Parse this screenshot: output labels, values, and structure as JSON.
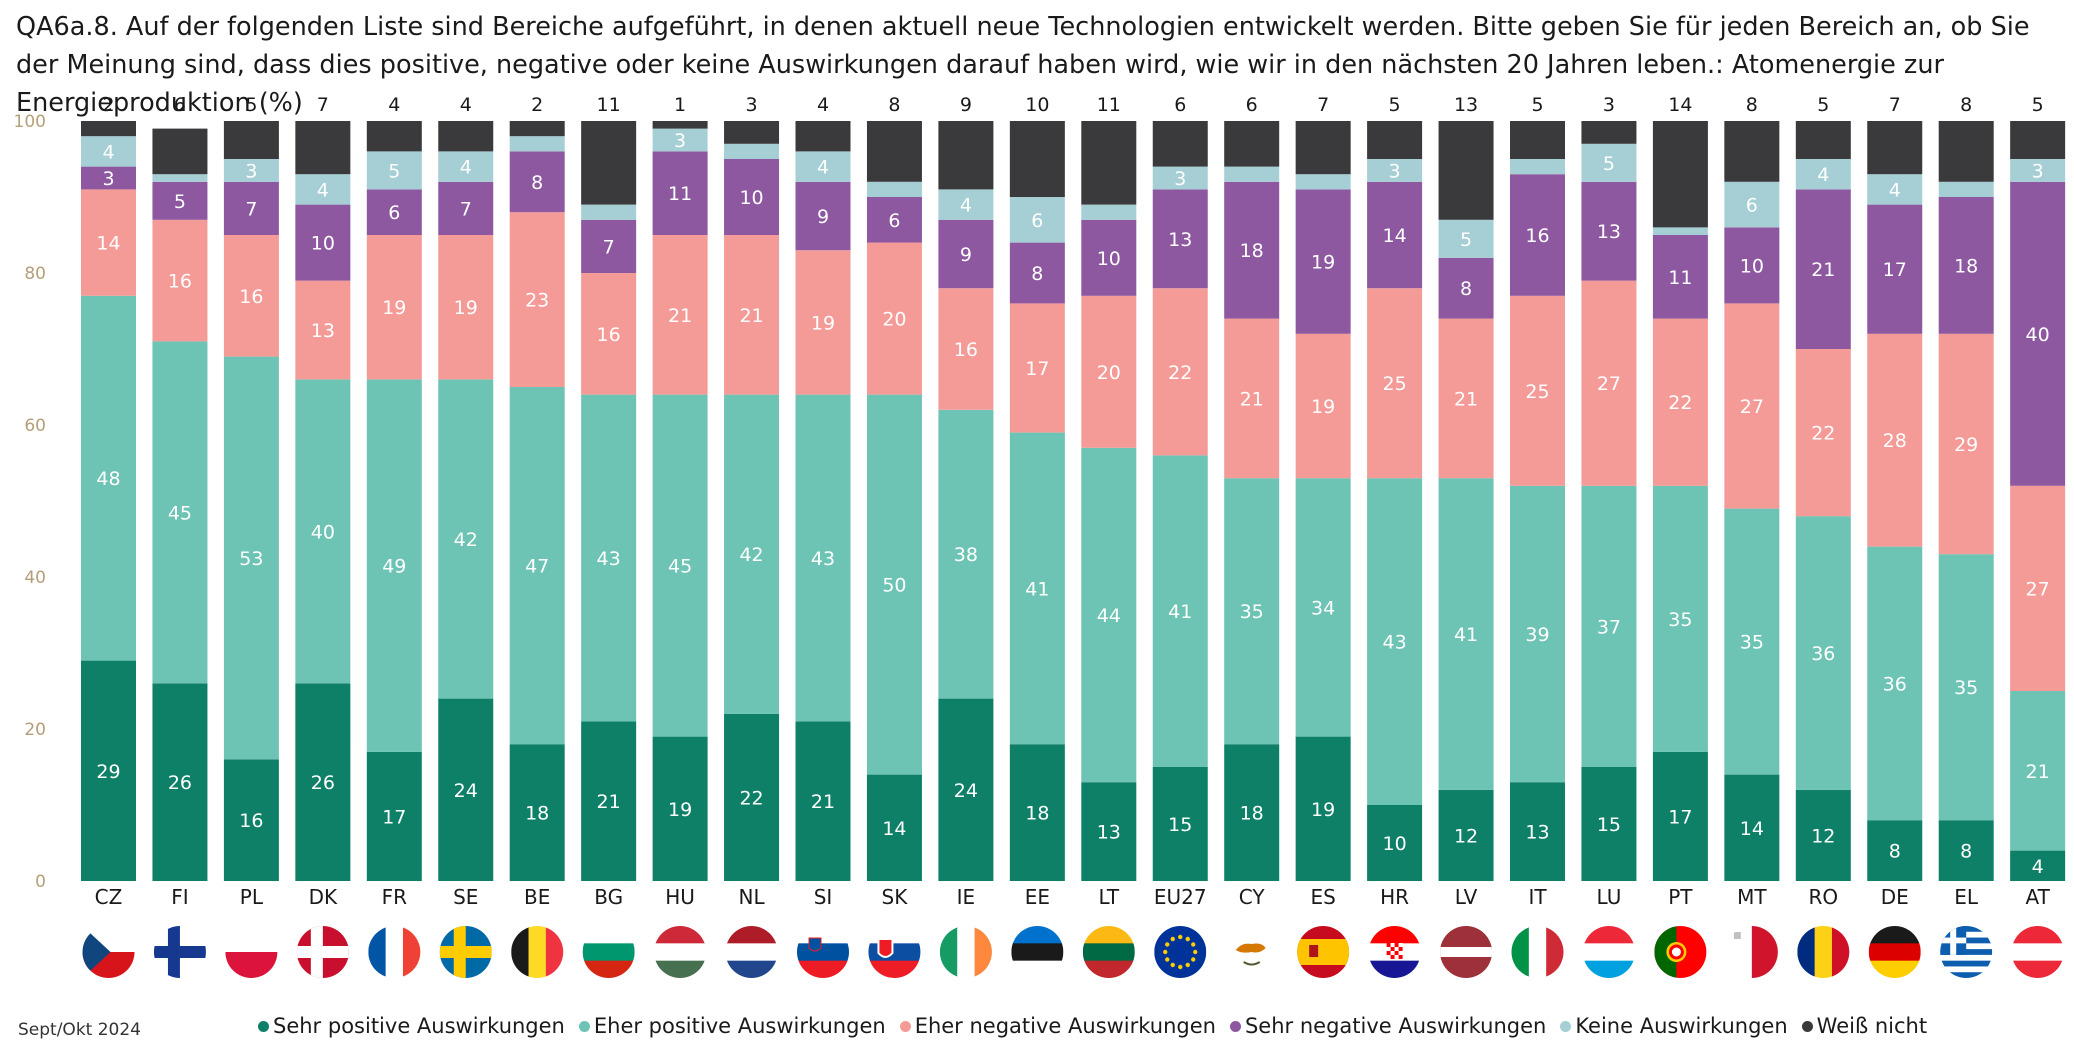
{
  "title": "QA6a.8. Auf der folgenden Liste sind Bereiche aufgeführt, in denen aktuell neue Technologien entwickelt werden. Bitte geben Sie für jeden Bereich an, ob Sie der Meinung sind, dass dies positive, negative oder keine Auswirkungen darauf haben wird, wie wir in den nächsten 20 Jahren leben.: Atomenergie zur Energieproduktion (%)",
  "footer_note": "Sept/Okt 2024",
  "chart_data": {
    "type": "bar",
    "stacked": true,
    "ylim": [
      0,
      100
    ],
    "yticks": [
      0,
      20,
      40,
      60,
      80,
      100
    ],
    "categories": [
      "CZ",
      "FI",
      "PL",
      "DK",
      "FR",
      "SE",
      "BE",
      "BG",
      "HU",
      "NL",
      "SI",
      "SK",
      "IE",
      "EE",
      "LT",
      "EU27",
      "CY",
      "ES",
      "HR",
      "LV",
      "IT",
      "LU",
      "PT",
      "MT",
      "RO",
      "DE",
      "EL",
      "AT"
    ],
    "series": [
      {
        "name": "Sehr positive Auswirkungen",
        "color": "#0f8068",
        "values": [
          29,
          26,
          16,
          26,
          17,
          24,
          18,
          21,
          19,
          22,
          21,
          14,
          24,
          18,
          13,
          15,
          18,
          19,
          10,
          12,
          13,
          15,
          17,
          14,
          12,
          8,
          8,
          4
        ]
      },
      {
        "name": "Eher positive Auswirkungen",
        "color": "#6dc4b4",
        "values": [
          48,
          45,
          53,
          40,
          49,
          42,
          47,
          43,
          45,
          42,
          43,
          50,
          38,
          41,
          44,
          41,
          35,
          34,
          43,
          41,
          39,
          37,
          35,
          35,
          36,
          36,
          35,
          21
        ]
      },
      {
        "name": "Eher negative Auswirkungen",
        "color": "#f49b98",
        "values": [
          14,
          16,
          16,
          13,
          19,
          19,
          23,
          16,
          21,
          21,
          19,
          20,
          16,
          17,
          20,
          22,
          21,
          19,
          25,
          21,
          25,
          27,
          22,
          27,
          22,
          28,
          29,
          27
        ]
      },
      {
        "name": "Sehr negative Auswirkungen",
        "color": "#8d58a0",
        "values": [
          3,
          5,
          7,
          10,
          6,
          7,
          8,
          7,
          11,
          10,
          9,
          6,
          9,
          8,
          10,
          13,
          18,
          19,
          14,
          8,
          16,
          13,
          11,
          10,
          21,
          17,
          18,
          40
        ]
      },
      {
        "name": "Keine Auswirkungen",
        "color": "#a6cfd5",
        "values": [
          4,
          1,
          3,
          4,
          5,
          4,
          2,
          2,
          3,
          2,
          4,
          2,
          4,
          6,
          2,
          3,
          2,
          2,
          3,
          5,
          2,
          5,
          1,
          6,
          4,
          4,
          2,
          3
        ]
      },
      {
        "name": "Weiß nicht",
        "color": "#3a3a3c",
        "values": [
          2,
          6,
          5,
          7,
          4,
          4,
          2,
          11,
          1,
          3,
          4,
          8,
          9,
          10,
          11,
          6,
          6,
          7,
          5,
          13,
          5,
          3,
          14,
          8,
          5,
          7,
          8,
          5
        ]
      }
    ],
    "labeled_series": [
      0,
      1,
      2,
      3,
      4
    ],
    "top_labels_from_series": 5,
    "legend_position": "bottom"
  },
  "flags": [
    "CZ",
    "FI",
    "PL",
    "DK",
    "FR",
    "SE",
    "BE",
    "BG",
    "HU",
    "NL",
    "SI",
    "SK",
    "IE",
    "EE",
    "LT",
    "EU27",
    "CY",
    "ES",
    "HR",
    "LV",
    "IT",
    "LU",
    "PT",
    "MT",
    "RO",
    "DE",
    "EL",
    "AT"
  ]
}
